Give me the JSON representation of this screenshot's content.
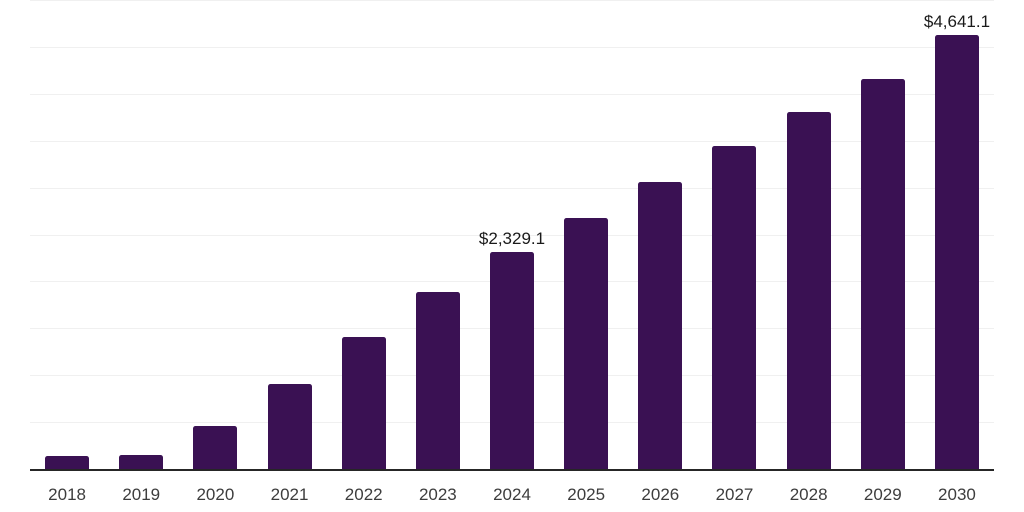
{
  "chart_data": {
    "type": "bar",
    "categories": [
      "2018",
      "2019",
      "2020",
      "2021",
      "2022",
      "2023",
      "2024",
      "2025",
      "2026",
      "2027",
      "2028",
      "2029",
      "2030"
    ],
    "values": [
      145,
      160,
      470,
      915,
      1415,
      1895,
      2329.1,
      2690,
      3075,
      3450,
      3820,
      4170,
      4641.1
    ],
    "value_labels": [
      "",
      "",
      "",
      "",
      "",
      "",
      "$2,329.1",
      "",
      "",
      "",
      "",
      "",
      "$4,641.1"
    ],
    "title": "",
    "xlabel": "",
    "ylabel": "",
    "ylim": [
      0,
      5000
    ],
    "gridline_step": 500,
    "grid": "horizontal",
    "legend": "none",
    "colors": {
      "bar": "#3A1153",
      "axis": "#262626",
      "gridline": "#F0F0F0",
      "tick_label": "#3D3D3D",
      "value_label": "#1A1A1A",
      "background": "#FFFFFF"
    }
  }
}
